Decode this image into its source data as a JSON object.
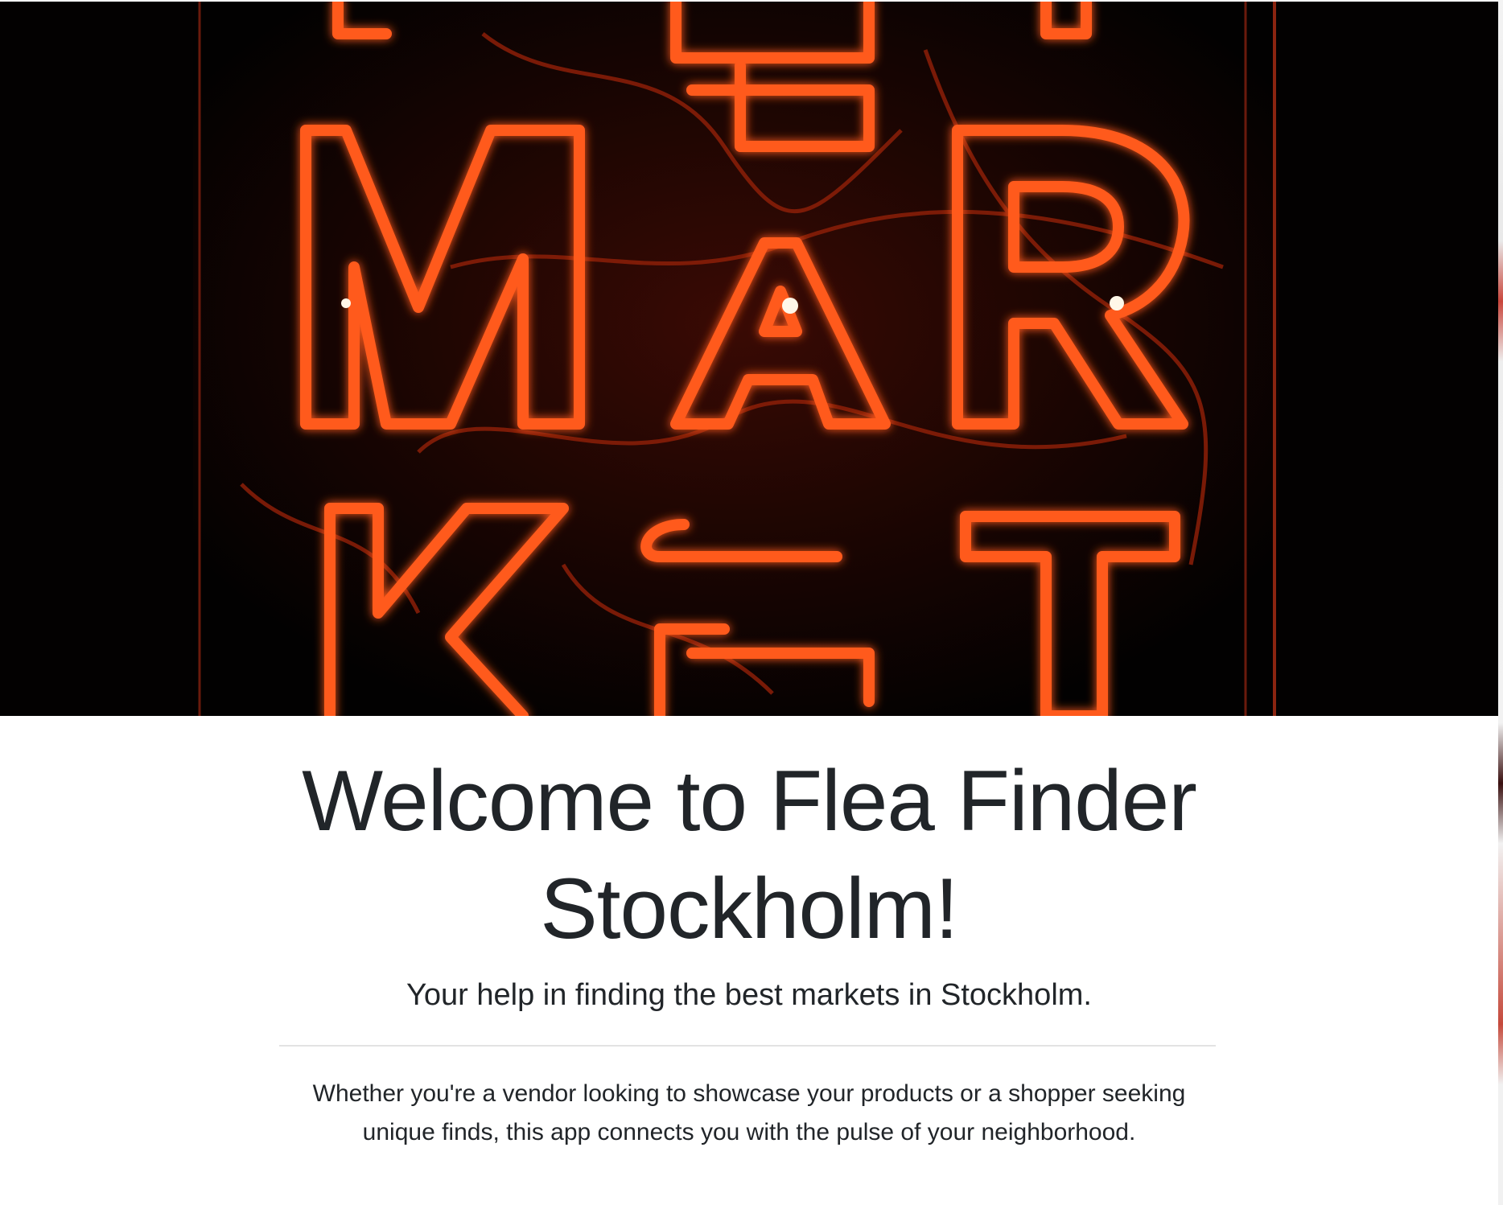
{
  "hero": {
    "image_name": "neon-market-sign-image",
    "sign_letters": "MARKET"
  },
  "main": {
    "title": "Welcome to Flea Finder Stockholm!",
    "lead": "Your help in finding the best markets in Stockholm.",
    "description": "Whether you're a vendor looking to showcase your products or a shopper seeking unique finds, this app connects you with the pulse of your neighborhood."
  },
  "colors": {
    "text": "#212529",
    "divider": "#e3e3e3",
    "neon": "#ff5a1f",
    "hero_background": "#050201"
  }
}
